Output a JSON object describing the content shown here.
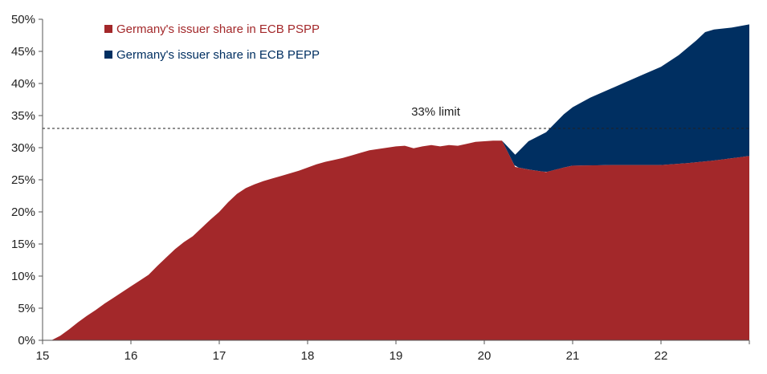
{
  "chart_data": {
    "type": "area",
    "title": "",
    "xlabel": "",
    "ylabel": "",
    "xlim": [
      15,
      23
    ],
    "ylim": [
      0,
      50
    ],
    "grid": false,
    "legend_position": "top-left",
    "x_ticks": [
      "15",
      "16",
      "17",
      "18",
      "19",
      "20",
      "21",
      "22"
    ],
    "y_ticks": [
      "0%",
      "5%",
      "10%",
      "15%",
      "20%",
      "25%",
      "30%",
      "35%",
      "40%",
      "45%",
      "50%"
    ],
    "stacked": true,
    "series": [
      {
        "name": "Germany's issuer share in ECB PSPP",
        "color": "#a3282a",
        "points": [
          [
            15.0,
            0.0
          ],
          [
            15.1,
            0.0
          ],
          [
            15.2,
            0.7
          ],
          [
            15.3,
            1.7
          ],
          [
            15.4,
            2.8
          ],
          [
            15.5,
            3.8
          ],
          [
            15.6,
            4.7
          ],
          [
            15.7,
            5.7
          ],
          [
            15.8,
            6.6
          ],
          [
            15.9,
            7.5
          ],
          [
            16.0,
            8.4
          ],
          [
            16.1,
            9.3
          ],
          [
            16.2,
            10.2
          ],
          [
            16.3,
            11.6
          ],
          [
            16.4,
            12.9
          ],
          [
            16.5,
            14.2
          ],
          [
            16.6,
            15.3
          ],
          [
            16.7,
            16.2
          ],
          [
            16.8,
            17.5
          ],
          [
            16.9,
            18.8
          ],
          [
            17.0,
            20.0
          ],
          [
            17.1,
            21.5
          ],
          [
            17.2,
            22.8
          ],
          [
            17.3,
            23.7
          ],
          [
            17.4,
            24.3
          ],
          [
            17.5,
            24.8
          ],
          [
            17.6,
            25.2
          ],
          [
            17.7,
            25.6
          ],
          [
            17.8,
            26.0
          ],
          [
            17.9,
            26.4
          ],
          [
            18.0,
            26.9
          ],
          [
            18.1,
            27.4
          ],
          [
            18.2,
            27.8
          ],
          [
            18.3,
            28.1
          ],
          [
            18.4,
            28.4
          ],
          [
            18.5,
            28.8
          ],
          [
            18.6,
            29.2
          ],
          [
            18.7,
            29.6
          ],
          [
            18.8,
            29.8
          ],
          [
            18.9,
            30.0
          ],
          [
            19.0,
            30.2
          ],
          [
            19.1,
            30.3
          ],
          [
            19.2,
            29.9
          ],
          [
            19.3,
            30.2
          ],
          [
            19.4,
            30.4
          ],
          [
            19.5,
            30.2
          ],
          [
            19.6,
            30.4
          ],
          [
            19.7,
            30.3
          ],
          [
            19.8,
            30.6
          ],
          [
            19.9,
            30.9
          ],
          [
            20.0,
            31.0
          ],
          [
            20.1,
            31.1
          ],
          [
            20.2,
            31.1
          ],
          [
            20.35,
            27.0
          ],
          [
            20.5,
            26.6
          ],
          [
            20.7,
            26.2
          ],
          [
            20.9,
            26.9
          ],
          [
            21.0,
            27.2
          ],
          [
            21.5,
            27.3
          ],
          [
            22.0,
            27.3
          ],
          [
            22.3,
            27.6
          ],
          [
            22.6,
            28.0
          ],
          [
            23.0,
            28.7
          ]
        ]
      },
      {
        "name": "Germany's issuer share in ECB PEPP",
        "color": "#002f61",
        "points": [
          [
            20.2,
            31.1
          ],
          [
            20.35,
            28.9
          ],
          [
            20.5,
            31.0
          ],
          [
            20.7,
            32.4
          ],
          [
            20.9,
            35.2
          ],
          [
            21.0,
            36.3
          ],
          [
            21.2,
            37.8
          ],
          [
            21.4,
            39.0
          ],
          [
            21.6,
            40.2
          ],
          [
            21.8,
            41.4
          ],
          [
            22.0,
            42.6
          ],
          [
            22.2,
            44.4
          ],
          [
            22.4,
            46.7
          ],
          [
            22.5,
            48.0
          ],
          [
            22.6,
            48.4
          ],
          [
            22.8,
            48.7
          ],
          [
            23.0,
            49.2
          ]
        ]
      }
    ],
    "annotations": [
      {
        "label": "33% limit",
        "y": 33,
        "style": "dashed"
      }
    ]
  }
}
